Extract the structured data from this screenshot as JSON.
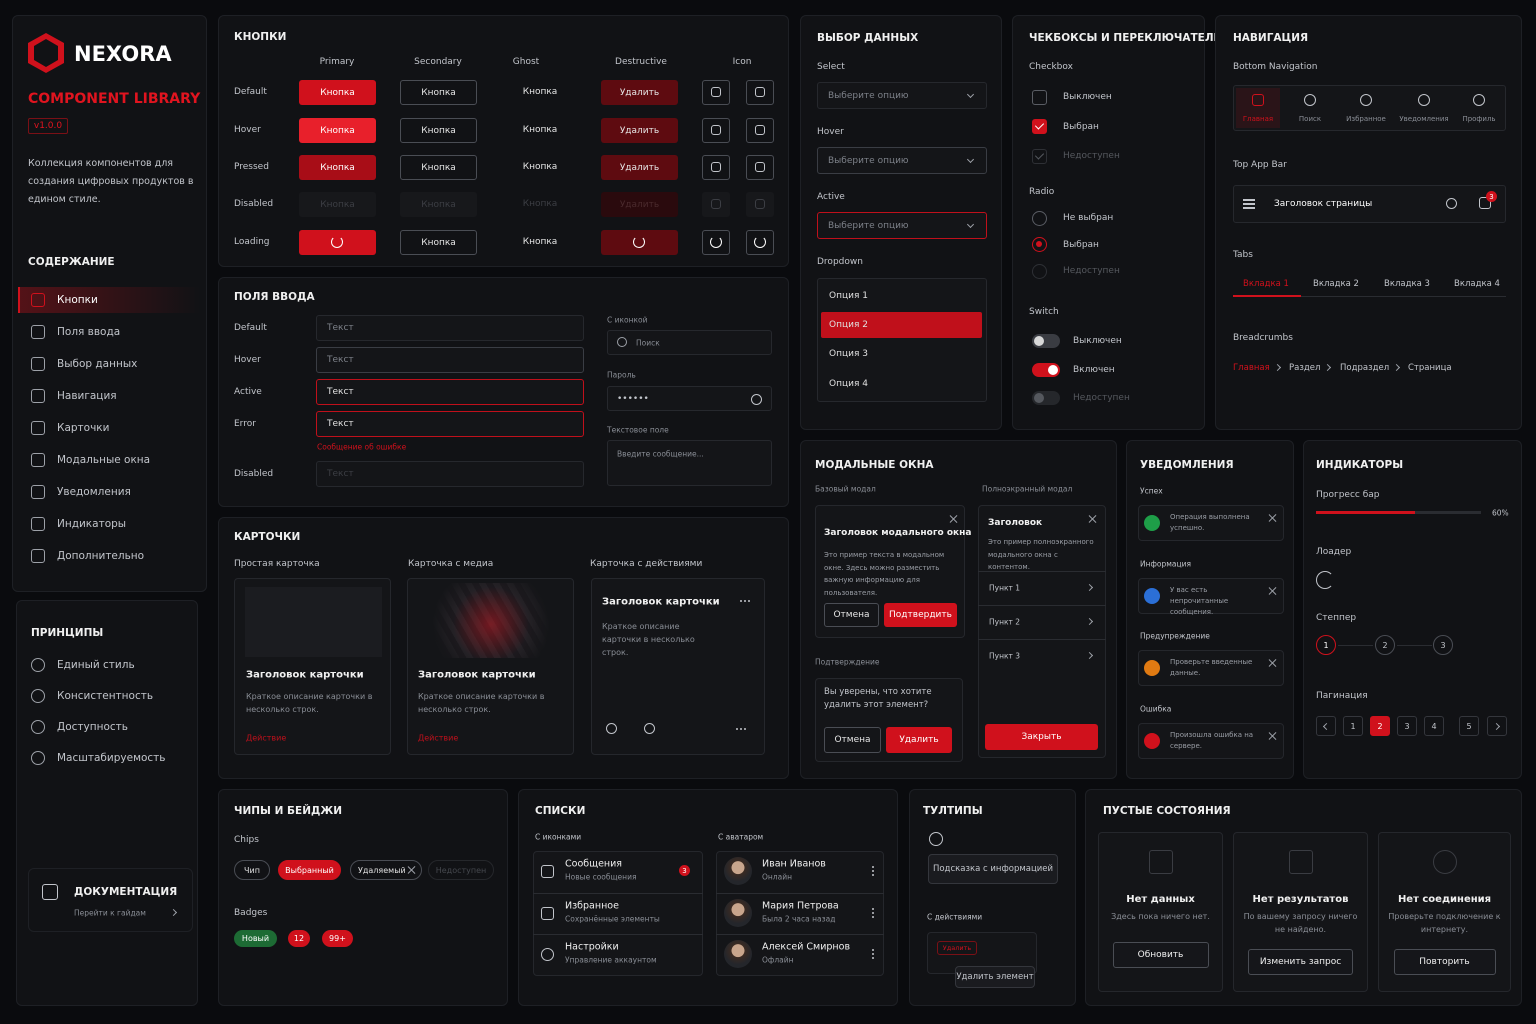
{
  "sidebar": {
    "brand": "NEXORA",
    "subtitle": "COMPONENT LIBRARY",
    "version": "v1.0.0",
    "description": "Коллекция компонентов для создания цифровых продуктов в едином стиле.",
    "contents_title": "СОДЕРЖАНИЕ",
    "contents": [
      "Кнопки",
      "Поля ввода",
      "Выбор данных",
      "Навигация",
      "Карточки",
      "Модальные окна",
      "Уведомления",
      "Индикаторы",
      "Дополнительно"
    ],
    "principles_title": "ПРИНЦИПЫ",
    "principles": [
      "Единый стиль",
      "Консистентность",
      "Доступность",
      "Масштабируемость"
    ],
    "docs_title": "ДОКУМЕНТАЦИЯ",
    "docs_link": "Перейти к гайдам"
  },
  "buttons": {
    "title": "КНОПКИ",
    "columns": [
      "Primary",
      "Secondary",
      "Ghost",
      "Destructive",
      "Icon"
    ],
    "states": [
      "Default",
      "Hover",
      "Pressed",
      "Disabled",
      "Loading"
    ],
    "button_label": "Кнопка",
    "delete_label": "Удалить"
  },
  "inputs": {
    "title": "ПОЛЯ ВВОДА",
    "states": [
      "Default",
      "Hover",
      "Active",
      "Error",
      "Disabled"
    ],
    "placeholder": "Текст",
    "error_message": "Сообщение об ошибке",
    "with_icon": "С иконкой",
    "search_placeholder": "Поиск",
    "password": "Пароль",
    "password_value": "••••••",
    "textarea": "Текстовое поле",
    "textarea_placeholder": "Введите сообщение..."
  },
  "cards": {
    "title": "КАРТОЧКИ",
    "types": [
      "Простая карточка",
      "Карточка с медиа",
      "Карточка с действиями"
    ],
    "card_title": "Заголовок карточки",
    "card_text": "Краткое описание карточки в несколько строк.",
    "action": "Действие"
  },
  "data_selection": {
    "title": "ВЫБОР ДАННЫХ",
    "labels": [
      "Select",
      "Hover",
      "Active",
      "Dropdown"
    ],
    "placeholder": "Выберите опцию",
    "options": [
      "Опция 1",
      "Опция 2",
      "Опция 3",
      "Опция 4"
    ]
  },
  "toggles": {
    "title": "ЧЕКБОКСЫ И ПЕРЕКЛЮЧАТЕЛИ",
    "checkbox": "Checkbox",
    "checkbox_items": [
      "Выключен",
      "Выбран",
      "Недоступен"
    ],
    "radio": "Radio",
    "radio_items": [
      "Не выбран",
      "Выбран",
      "Недоступен"
    ],
    "switch": "Switch",
    "switch_items": [
      "Выключен",
      "Включен",
      "Недоступен"
    ]
  },
  "navigation": {
    "title": "НАВИГАЦИЯ",
    "bottom_nav": "Bottom Navigation",
    "bottom_items": [
      "Главная",
      "Поиск",
      "Избранное",
      "Уведомления",
      "Профиль"
    ],
    "top_app_bar": "Top App Bar",
    "page_title": "Заголовок страницы",
    "notification_count": 3,
    "tabs_label": "Tabs",
    "tabs": [
      "Вкладка 1",
      "Вкладка 2",
      "Вкладка 3",
      "Вкладка 4"
    ],
    "breadcrumbs_label": "Breadcrumbs",
    "breadcrumbs": [
      "Главная",
      "Раздел",
      "Подраздел",
      "Страница"
    ]
  },
  "modals": {
    "title": "МОДАЛЬНЫЕ ОКНА",
    "basic": "Базовый модал",
    "basic_title": "Заголовок модального окна",
    "basic_text": "Это пример текста в модальном окне. Здесь можно разместить важную информацию для пользователя.",
    "cancel": "Отмена",
    "confirm": "Подтвердить",
    "fullscreen": "Полноэкранный модал",
    "fs_title": "Заголовок",
    "fs_text": "Это пример полноэкранного модального окна с контентом.",
    "fs_items": [
      "Пункт 1",
      "Пункт 2",
      "Пункт 3"
    ],
    "close": "Закрыть",
    "confirmation": "Подтверждение",
    "confirmation_text": "Вы уверены, что хотите удалить этот элемент?",
    "delete": "Удалить"
  },
  "notifications": {
    "title": "УВЕДОМЛЕНИЯ",
    "items": [
      {
        "label": "Успех",
        "text": "Операция выполнена успешно."
      },
      {
        "label": "Информация",
        "text": "У вас есть непрочитанные сообщения."
      },
      {
        "label": "Предупреждение",
        "text": "Проверьте введенные данные."
      },
      {
        "label": "Ошибка",
        "text": "Произошла ошибка на сервере."
      }
    ]
  },
  "indicators": {
    "title": "ИНДИКАТОРЫ",
    "progress_label": "Прогресс бар",
    "progress": {
      "value": 60,
      "value_label": "60%"
    },
    "loader": "Лоадер",
    "stepper": "Степпер",
    "steps": [
      1,
      2,
      3
    ],
    "pagination": "Пагинация",
    "pages": [
      1,
      2,
      3,
      4,
      5
    ]
  },
  "chips": {
    "title": "ЧИПЫ И БЕЙДЖИ",
    "chips_label": "Chips",
    "chips": [
      "Чип",
      "Выбранный",
      "Удаляемый",
      "Недоступен"
    ],
    "badges_label": "Badges",
    "badges": [
      "Новый",
      "12",
      "99+"
    ]
  },
  "lists": {
    "title": "СПИСКИ",
    "with_icons": "С иконками",
    "icon_items": [
      {
        "title": "Сообщения",
        "subtitle": "Новые сообщения",
        "badge": 3
      },
      {
        "title": "Избранное",
        "subtitle": "Сохранённые элементы"
      },
      {
        "title": "Настройки",
        "subtitle": "Управление аккаунтом"
      }
    ],
    "with_avatar": "С аватаром",
    "avatar_items": [
      {
        "name": "Иван Иванов",
        "status": "Онлайн"
      },
      {
        "name": "Мария Петрова",
        "status": "Была 2 часа назад"
      },
      {
        "name": "Алексей Смирнов",
        "status": "Офлайн"
      }
    ]
  },
  "tooltips": {
    "title": "ТУЛТИПЫ",
    "info_tooltip": "Подсказка с информацией",
    "with_actions": "С действиями",
    "action_button": "Удалить",
    "action_tooltip": "Удалить элемент"
  },
  "empty_states": {
    "title": "ПУСТЫЕ СОСТОЯНИЯ",
    "items": [
      {
        "title": "Нет данных",
        "text": "Здесь пока ничего нет.",
        "button": "Обновить"
      },
      {
        "title": "Нет результатов",
        "text": "По вашему запросу ничего не найдено.",
        "button": "Изменить запрос"
      },
      {
        "title": "Нет соединения",
        "text": "Проверьте подключение к интернету.",
        "button": "Повторить"
      }
    ]
  }
}
